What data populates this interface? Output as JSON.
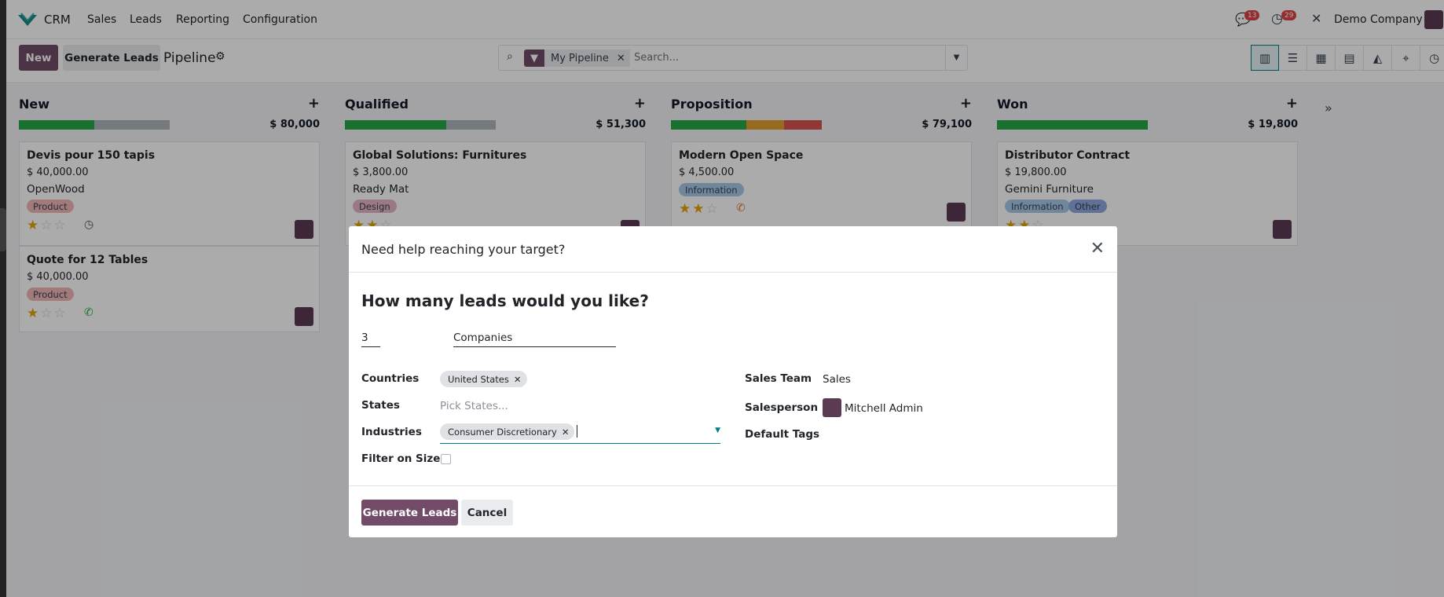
{
  "navbar": {
    "app_name": "CRM",
    "menu": [
      "Sales",
      "Leads",
      "Reporting",
      "Configuration"
    ],
    "messages_count": "13",
    "activities_count": "29",
    "company": "Demo Company"
  },
  "control_panel": {
    "new_label": "New",
    "generate_leads_label": "Generate Leads",
    "breadcrumb": "Pipeline",
    "facet_label": "My Pipeline",
    "search_placeholder": "Search..."
  },
  "columns": [
    {
      "title": "New",
      "total": "$ 80,000",
      "progress": {
        "green": 0.5,
        "grey": 0.5
      },
      "cards": [
        {
          "name": "Devis pour 150 tapis",
          "amount": "$ 40,000.00",
          "customer": "OpenWood",
          "tags": [
            "Product"
          ],
          "stars": 1,
          "activity": "clock"
        },
        {
          "name": "Quote for 12 Tables",
          "amount": "$ 40,000.00",
          "customer": "",
          "tags": [
            "Product"
          ],
          "stars": 1,
          "activity": "phone"
        }
      ]
    },
    {
      "title": "Qualified",
      "total": "$ 51,300",
      "progress": {
        "green": 0.67,
        "grey": 0.33
      },
      "cards": [
        {
          "name": "Global Solutions: Furnitures",
          "amount": "$ 3,800.00",
          "customer": "Ready Mat",
          "tags": [
            "Design"
          ],
          "stars": 2
        }
      ]
    },
    {
      "title": "Proposition",
      "total": "$ 79,100",
      "progress": {
        "green": 0.5,
        "orange": 0.25,
        "red": 0.25
      },
      "cards": [
        {
          "name": "Modern Open Space",
          "amount": "$ 4,500.00",
          "customer": "",
          "tags": [
            "Information"
          ],
          "stars": 2,
          "activity": "phone"
        }
      ]
    },
    {
      "title": "Won",
      "total": "$ 19,800",
      "progress": {
        "green": 1.0
      },
      "cards": [
        {
          "name": "Distributor Contract",
          "amount": "$ 19,800.00",
          "customer": "Gemini Furniture",
          "tags": [
            "Information",
            "Other"
          ],
          "stars": 2
        }
      ]
    }
  ],
  "dialog": {
    "title": "Need help reaching your target?",
    "question": "How many leads would you like?",
    "count": "3",
    "target_type": "Companies",
    "countries_label": "Countries",
    "countries": [
      "United States"
    ],
    "states_label": "States",
    "states_placeholder": "Pick States...",
    "industries_label": "Industries",
    "industries": [
      "Consumer Discretionary"
    ],
    "filter_size_label": "Filter on Size",
    "sales_team_label": "Sales Team",
    "sales_team": "Sales",
    "salesperson_label": "Salesperson",
    "salesperson": "Mitchell Admin",
    "default_tags_label": "Default Tags",
    "generate_label": "Generate Leads",
    "cancel_label": "Cancel"
  },
  "colors": {
    "primary": "#714b67",
    "green": "#28a745",
    "orange": "#e0a030",
    "red": "#d9534f",
    "tag_product": "#f4b7b7",
    "tag_design": "#e8b4c8",
    "tag_information": "#a8c8e8",
    "tag_other": "#8fa8e0"
  }
}
